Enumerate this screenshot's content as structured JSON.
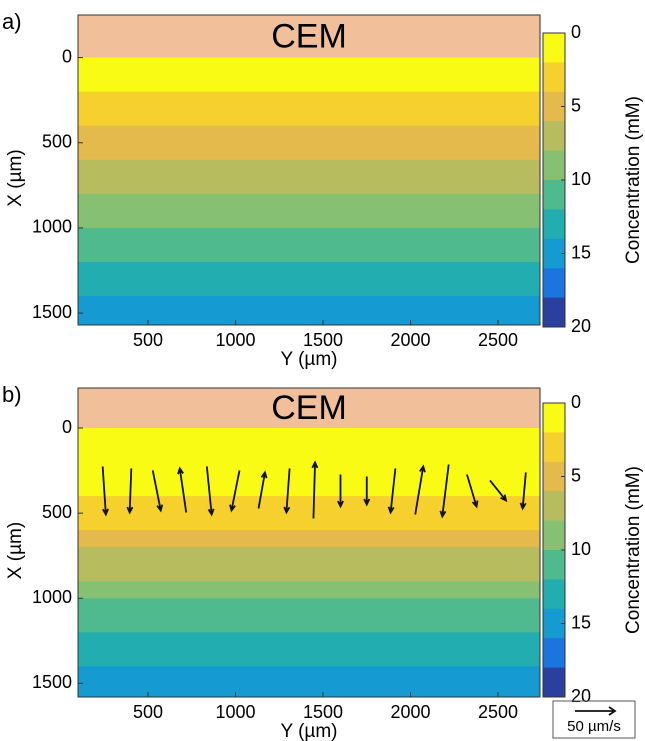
{
  "chart_data": [
    {
      "type": "heatmap",
      "label": "a)",
      "annotation": "CEM",
      "x_label": "Y (µm)",
      "y_label": "X (µm)",
      "xlim": [
        100,
        2740
      ],
      "xticks": [
        500,
        1000,
        1500,
        2000,
        2500
      ],
      "ylim": [
        -250,
        1570
      ],
      "yticks": [
        0,
        500,
        1000,
        1500
      ],
      "y_inverted": true,
      "x": [
        50,
        150,
        250,
        350,
        450,
        550,
        650,
        750,
        850,
        950,
        1050,
        1150,
        1250,
        1350,
        1450,
        1550
      ],
      "values": [
        1.0,
        1.8,
        2.6,
        3.5,
        4.4,
        5.3,
        6.2,
        7.1,
        8.0,
        9.0,
        10.0,
        11.0,
        12.0,
        13.0,
        14.0,
        15.2
      ],
      "colorbar_label": "Concentration (mM)",
      "clim": [
        0,
        20
      ],
      "cticks": [
        0,
        5,
        10,
        15,
        20
      ],
      "cbar_reversed": true,
      "colors": [
        "#f9fb15",
        "#f6d12e",
        "#e5ba4c",
        "#b7bd5e",
        "#86c072",
        "#4fba8e",
        "#22aeb0",
        "#169ad2",
        "#1b75df",
        "#2b3f9e"
      ],
      "cem_color": "#f2bf9b"
    },
    {
      "type": "heatmap",
      "label": "b)",
      "annotation": "CEM",
      "x_label": "Y (µm)",
      "y_label": "X (µm)",
      "xlim": [
        100,
        2740
      ],
      "xticks": [
        500,
        1000,
        1500,
        2000,
        2500
      ],
      "ylim": [
        -235,
        1580
      ],
      "yticks": [
        0,
        500,
        1000,
        1500
      ],
      "y_inverted": true,
      "x": [
        50,
        150,
        250,
        350,
        450,
        550,
        650,
        750,
        850,
        950,
        1050,
        1150,
        1250,
        1350,
        1450,
        1550
      ],
      "values": [
        1.5,
        1.5,
        1.6,
        1.8,
        2.6,
        3.8,
        5.2,
        6.4,
        7.6,
        8.8,
        10.0,
        11.2,
        12.4,
        13.4,
        14.4,
        15.4
      ],
      "colorbar_label": "Concentration (mM)",
      "clim": [
        0,
        20
      ],
      "cticks": [
        0,
        5,
        10,
        15,
        20
      ],
      "cbar_reversed": true,
      "colors": [
        "#f9fb15",
        "#f6d12e",
        "#e5ba4c",
        "#b7bd5e",
        "#86c072",
        "#4fba8e",
        "#22aeb0",
        "#169ad2",
        "#1b75df",
        "#2b3f9e"
      ],
      "cem_color": "#f2bf9b",
      "vectors": {
        "y": [
          250,
          400,
          550,
          700,
          850,
          1000,
          1150,
          1300,
          1450,
          1600,
          1750,
          1900,
          2050,
          2200,
          2350,
          2500,
          2650
        ],
        "x": [
          220,
          220,
          220,
          220,
          220,
          220,
          220,
          220,
          220,
          220,
          220,
          220,
          220,
          220,
          220,
          220,
          220
        ],
        "u": [
          4,
          -2,
          10,
          -8,
          6,
          -10,
          8,
          -4,
          2,
          0,
          0,
          -6,
          10,
          -8,
          12,
          20,
          -4
        ],
        "v": [
          60,
          55,
          50,
          -55,
          60,
          50,
          -45,
          55,
          -70,
          40,
          35,
          55,
          -60,
          65,
          40,
          25,
          45
        ]
      },
      "scale_value": 50,
      "scale_label": "50 µm/s"
    }
  ]
}
